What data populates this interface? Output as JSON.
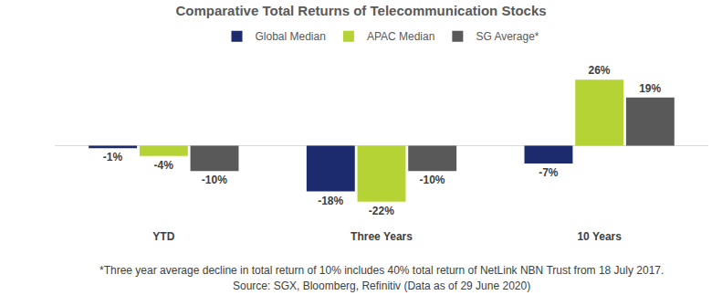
{
  "chart_data": {
    "type": "bar",
    "title": "Comparative Total Returns of Telecommunication Stocks",
    "categories": [
      "YTD",
      "Three Years",
      "10 Years"
    ],
    "series": [
      {
        "name": "Global Median",
        "color": "#1c2a6e",
        "values": [
          -1,
          -18,
          -7
        ],
        "value_labels": [
          "-1%",
          "-18%",
          "-7%"
        ]
      },
      {
        "name": "APAC Median",
        "color": "#b5d334",
        "values": [
          -4,
          -22,
          26
        ],
        "value_labels": [
          "-4%",
          "-22%",
          "26%"
        ]
      },
      {
        "name": "SG Average*",
        "color": "#595959",
        "values": [
          -10,
          -10,
          19
        ],
        "value_labels": [
          "-10%",
          "-10%",
          "19%"
        ]
      }
    ],
    "data_labels": true,
    "grid": false,
    "legend": "top",
    "tick_labels": "x",
    "footnotes": [
      "*Three year average decline in total return of 10% includes 40% total return of NetLink NBN Trust from 18 July 2017.",
      "Source: SGX, Bloomberg, Refinitiv (Data as of 29 June 2020)"
    ]
  }
}
